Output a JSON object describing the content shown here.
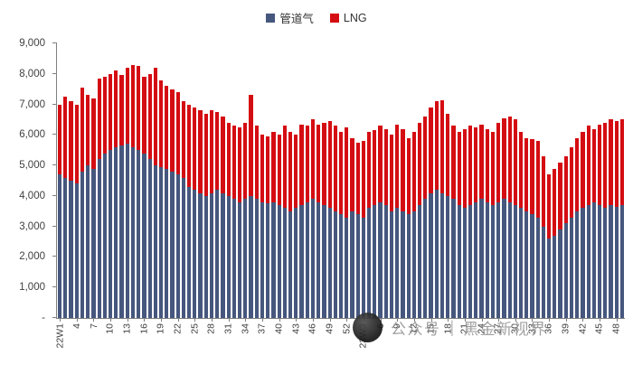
{
  "chart_data": {
    "type": "bar",
    "stacked": true,
    "title": "",
    "legend_position": "top",
    "grid": false,
    "categories": [
      "22W1",
      "",
      "",
      "4",
      "",
      "",
      "7",
      "",
      "",
      "10",
      "",
      "",
      "13",
      "",
      "",
      "16",
      "",
      "",
      "19",
      "",
      "",
      "22",
      "",
      "",
      "25",
      "",
      "",
      "28",
      "",
      "",
      "31",
      "",
      "",
      "34",
      "",
      "",
      "37",
      "",
      "",
      "40",
      "",
      "",
      "43",
      "",
      "",
      "46",
      "",
      "",
      "49",
      "",
      "",
      "52",
      "",
      "",
      "23W3",
      "",
      "",
      "6",
      "",
      "",
      "9",
      "",
      "",
      "12",
      "",
      "",
      "15",
      "",
      "",
      "18",
      "",
      "",
      "21",
      "",
      "",
      "24",
      "",
      "",
      "27",
      "",
      "",
      "30",
      "",
      "",
      "33",
      "",
      "",
      "36",
      "",
      "",
      "39",
      "",
      "",
      "42",
      "",
      "",
      "45",
      "",
      "",
      "48",
      ""
    ],
    "series": [
      {
        "name": "管道气",
        "color": "#46577e",
        "values": [
          4700,
          4600,
          4500,
          4400,
          4800,
          5000,
          4900,
          5200,
          5400,
          5500,
          5600,
          5650,
          5700,
          5600,
          5500,
          5400,
          5200,
          5000,
          4950,
          4900,
          4800,
          4700,
          4600,
          4300,
          4200,
          4100,
          4000,
          4100,
          4200,
          4100,
          4000,
          3900,
          3800,
          3900,
          4000,
          3900,
          3800,
          3750,
          3800,
          3700,
          3600,
          3500,
          3600,
          3700,
          3800,
          3900,
          3800,
          3700,
          3600,
          3500,
          3400,
          3300,
          3500,
          3400,
          3300,
          3600,
          3700,
          3800,
          3700,
          3500,
          3600,
          3500,
          3400,
          3500,
          3700,
          3900,
          4100,
          4200,
          4100,
          4000,
          3900,
          3700,
          3600,
          3700,
          3800,
          3900,
          3800,
          3700,
          3800,
          3900,
          3800,
          3700,
          3600,
          3500,
          3400,
          3300,
          3000,
          2600,
          2700,
          2900,
          3100,
          3300,
          3500,
          3600,
          3700,
          3800,
          3700,
          3600,
          3700,
          3650,
          3700
        ]
      },
      {
        "name": "LNG",
        "color": "#d40d12",
        "values": [
          2300,
          2650,
          2600,
          2600,
          2750,
          2300,
          2300,
          2650,
          2500,
          2500,
          2500,
          2300,
          2500,
          2700,
          2750,
          2500,
          2800,
          3200,
          2850,
          2700,
          2700,
          2700,
          2500,
          2700,
          2700,
          2700,
          2700,
          2700,
          2550,
          2500,
          2400,
          2400,
          2450,
          2500,
          3300,
          2400,
          2200,
          2200,
          2300,
          2300,
          2700,
          2600,
          2400,
          2650,
          2500,
          2600,
          2550,
          2700,
          2850,
          2800,
          2700,
          2950,
          2400,
          2350,
          2500,
          2500,
          2450,
          2500,
          2500,
          2500,
          2750,
          2700,
          2500,
          2600,
          2700,
          2700,
          2800,
          2900,
          3050,
          2700,
          2400,
          2400,
          2600,
          2600,
          2450,
          2450,
          2400,
          2400,
          2600,
          2650,
          2800,
          2800,
          2500,
          2400,
          2450,
          2500,
          2300,
          2100,
          2200,
          2200,
          2200,
          2300,
          2400,
          2500,
          2600,
          2400,
          2650,
          2800,
          2800,
          2800,
          2800
        ]
      }
    ],
    "y_axis": {
      "min": 0,
      "max": 9000,
      "step": 1000,
      "tick_labels": [
        "-",
        "1,000",
        "2,000",
        "3,000",
        "4,000",
        "5,000",
        "6,000",
        "7,000",
        "8,000",
        "9,000"
      ]
    }
  },
  "watermark": {
    "account_text": "公众号",
    "separator": "|",
    "name_text": "黑金新视界"
  }
}
